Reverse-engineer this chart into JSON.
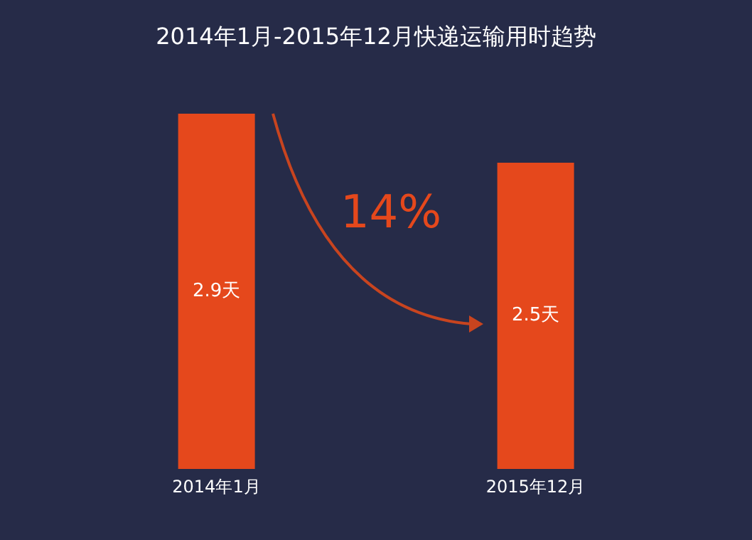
{
  "chart_data": {
    "type": "bar",
    "title": "2014年1月-2015年12月快递运输用时趋势",
    "categories": [
      "2014年1月",
      "2015年12月"
    ],
    "values": [
      2.9,
      2.5
    ],
    "color": "#e5481c",
    "value_labels": [
      "2.9天",
      "2.5天"
    ],
    "annotations": [
      "14%"
    ],
    "tick_labels": "x"
  }
}
